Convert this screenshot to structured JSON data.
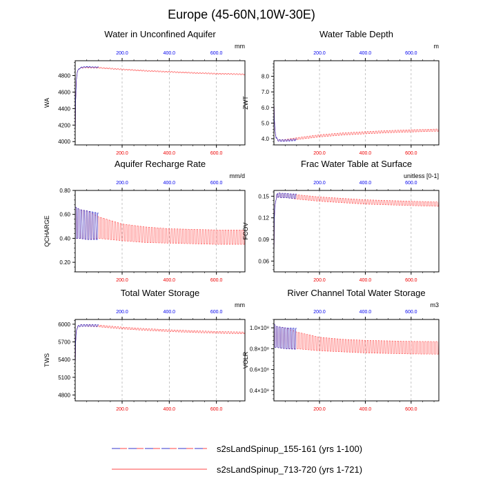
{
  "figure_title": "Europe (45-60N,10W-30E)",
  "colors": {
    "series_a": "#3333cc",
    "series_b": "#ff4444",
    "top_tick": "#0000ee",
    "bottom_tick": "#ee0000",
    "axis": "#000000",
    "grid": "#aaaaaa"
  },
  "legend": [
    {
      "label": "s2sLandSpinup_155-161 (yrs 1-100)",
      "style": "dashed"
    },
    {
      "label": "s2sLandSpinup_713-720 (yrs 1-721)",
      "style": "solid"
    }
  ],
  "chart_data": [
    {
      "type": "line",
      "title": "Water in Unconfined Aquifer",
      "ylabel": "WA",
      "units": "mm",
      "xlim": [
        1,
        721
      ],
      "ylim": [
        3960,
        4980
      ],
      "yticks": [
        4000,
        4200,
        4400,
        4600,
        4800
      ],
      "ytick_labels": [
        "4000",
        "4200",
        "4400",
        "4600",
        "4800"
      ],
      "xticks": [
        200,
        400,
        600
      ],
      "xtick_labels": [
        "200.0",
        "400.0",
        "600.0"
      ],
      "series": [
        {
          "name": "s2sLandSpinup_155-161 (yrs 1-100)",
          "x": [
            1,
            3,
            6,
            10,
            20,
            30,
            50,
            70,
            100
          ],
          "y": [
            3980,
            4500,
            4750,
            4850,
            4890,
            4900,
            4905,
            4902,
            4900
          ],
          "amp": [
            0,
            0,
            0,
            5,
            5,
            5,
            5,
            5,
            5
          ]
        },
        {
          "name": "s2sLandSpinup_713-720 (yrs 1-721)",
          "x": [
            1,
            3,
            6,
            10,
            20,
            40,
            100,
            200,
            300,
            400,
            500,
            600,
            721
          ],
          "y": [
            3980,
            4500,
            4750,
            4850,
            4890,
            4900,
            4895,
            4875,
            4858,
            4845,
            4833,
            4823,
            4815
          ],
          "amp": [
            0,
            0,
            0,
            5,
            5,
            5,
            5,
            5,
            5,
            5,
            5,
            5,
            5
          ]
        }
      ]
    },
    {
      "type": "line",
      "title": "Water Table Depth",
      "ylabel": "ZWT",
      "units": "m",
      "xlim": [
        1,
        721
      ],
      "ylim": [
        3.6,
        9.0
      ],
      "yticks": [
        4.0,
        5.0,
        6.0,
        7.0,
        8.0
      ],
      "ytick_labels": [
        "4.0",
        "5.0",
        "6.0",
        "7.0",
        "8.0"
      ],
      "xticks": [
        200,
        400,
        600
      ],
      "xtick_labels": [
        "200.0",
        "400.0",
        "600.0"
      ],
      "series": [
        {
          "name": "s2sLandSpinup_155-161 (yrs 1-100)",
          "x": [
            1,
            3,
            6,
            10,
            15,
            20,
            30,
            50,
            70,
            100
          ],
          "y": [
            6.6,
            5.2,
            4.5,
            4.1,
            3.95,
            3.9,
            3.88,
            3.88,
            3.9,
            3.93
          ],
          "amp": [
            0,
            0,
            0,
            0.04,
            0.05,
            0.05,
            0.05,
            0.05,
            0.05,
            0.05
          ]
        },
        {
          "name": "s2sLandSpinup_713-720 (yrs 1-721)",
          "x": [
            1,
            3,
            6,
            10,
            15,
            20,
            30,
            50,
            100,
            200,
            300,
            400,
            500,
            600,
            721
          ],
          "y": [
            6.6,
            5.2,
            4.5,
            4.1,
            3.95,
            3.9,
            3.88,
            3.9,
            4.0,
            4.18,
            4.3,
            4.38,
            4.45,
            4.5,
            4.55
          ],
          "amp": [
            0,
            0,
            0,
            0.04,
            0.05,
            0.05,
            0.05,
            0.05,
            0.06,
            0.07,
            0.07,
            0.07,
            0.07,
            0.07,
            0.07
          ]
        }
      ]
    },
    {
      "type": "line",
      "title": "Aquifer Recharge Rate",
      "ylabel": "QCHARGE",
      "units": "mm/d",
      "xlim": [
        1,
        721
      ],
      "ylim": [
        0.12,
        0.8
      ],
      "yticks": [
        0.2,
        0.4,
        0.6,
        0.8
      ],
      "ytick_labels": [
        "0.20",
        "0.40",
        "0.60",
        "0.80"
      ],
      "xticks": [
        200,
        400,
        600
      ],
      "xtick_labels": [
        "200.0",
        "400.0",
        "600.0"
      ],
      "series": [
        {
          "name": "s2sLandSpinup_155-161 (yrs 1-100)",
          "x": [
            1,
            5,
            20,
            50,
            100
          ],
          "y": [
            0.53,
            0.53,
            0.52,
            0.51,
            0.5
          ],
          "amp": [
            0.13,
            0.13,
            0.12,
            0.12,
            0.11
          ]
        },
        {
          "name": "s2sLandSpinup_713-720 (yrs 1-721)",
          "x": [
            1,
            5,
            20,
            50,
            100,
            200,
            300,
            400,
            500,
            600,
            721
          ],
          "y": [
            0.53,
            0.53,
            0.52,
            0.51,
            0.49,
            0.45,
            0.43,
            0.42,
            0.415,
            0.41,
            0.41
          ],
          "amp": [
            0.13,
            0.13,
            0.12,
            0.12,
            0.09,
            0.07,
            0.065,
            0.06,
            0.06,
            0.06,
            0.06
          ]
        }
      ]
    },
    {
      "type": "line",
      "title": "Frac Water Table at Surface",
      "ylabel": "FCOV",
      "units": "unitless [0-1]",
      "xlim": [
        1,
        721
      ],
      "ylim": [
        0.045,
        0.158
      ],
      "yticks": [
        0.06,
        0.09,
        0.12,
        0.15
      ],
      "ytick_labels": [
        "0.06",
        "0.09",
        "0.12",
        "0.15"
      ],
      "xticks": [
        200,
        400,
        600
      ],
      "xtick_labels": [
        "200.0",
        "400.0",
        "600.0"
      ],
      "series": [
        {
          "name": "s2sLandSpinup_155-161 (yrs 1-100)",
          "x": [
            1,
            3,
            6,
            10,
            20,
            30,
            50,
            80,
            100
          ],
          "y": [
            0.055,
            0.12,
            0.14,
            0.148,
            0.152,
            0.151,
            0.151,
            0.15,
            0.15
          ],
          "amp": [
            0,
            0,
            0.002,
            0.003,
            0.003,
            0.003,
            0.003,
            0.003,
            0.003
          ]
        },
        {
          "name": "s2sLandSpinup_713-720 (yrs 1-721)",
          "x": [
            1,
            3,
            6,
            10,
            20,
            30,
            50,
            100,
            200,
            300,
            400,
            500,
            600,
            721
          ],
          "y": [
            0.055,
            0.12,
            0.14,
            0.148,
            0.152,
            0.151,
            0.151,
            0.149,
            0.146,
            0.144,
            0.142,
            0.141,
            0.14,
            0.139
          ],
          "amp": [
            0,
            0,
            0.002,
            0.003,
            0.003,
            0.003,
            0.003,
            0.003,
            0.003,
            0.003,
            0.003,
            0.003,
            0.003,
            0.003
          ]
        }
      ]
    },
    {
      "type": "line",
      "title": "Total Water Storage",
      "ylabel": "TWS",
      "units": "mm",
      "xlim": [
        1,
        721
      ],
      "ylim": [
        4700,
        6080
      ],
      "yticks": [
        4800,
        5100,
        5400,
        5700,
        6000
      ],
      "ytick_labels": [
        "4800",
        "5100",
        "5400",
        "5700",
        "6000"
      ],
      "xticks": [
        200,
        400,
        600
      ],
      "xtick_labels": [
        "200.0",
        "400.0",
        "600.0"
      ],
      "series": [
        {
          "name": "s2sLandSpinup_155-161 (yrs 1-100)",
          "x": [
            1,
            3,
            6,
            10,
            20,
            40,
            70,
            100
          ],
          "y": [
            5200,
            5700,
            5900,
            5950,
            5975,
            5980,
            5978,
            5975
          ],
          "amp": [
            0,
            0,
            10,
            15,
            15,
            15,
            15,
            15
          ]
        },
        {
          "name": "s2sLandSpinup_713-720 (yrs 1-721)",
          "x": [
            1,
            3,
            6,
            10,
            20,
            40,
            100,
            200,
            300,
            400,
            500,
            600,
            721
          ],
          "y": [
            5200,
            5700,
            5900,
            5950,
            5975,
            5980,
            5970,
            5935,
            5910,
            5890,
            5875,
            5862,
            5852
          ],
          "amp": [
            0,
            0,
            10,
            15,
            15,
            15,
            15,
            15,
            15,
            15,
            15,
            15,
            15
          ]
        }
      ]
    },
    {
      "type": "line",
      "title": "River Channel Total Water Storage",
      "ylabel": "VOLR",
      "units": "m3",
      "xlim": [
        1,
        721
      ],
      "ylim": [
        30000000.0,
        108000000.0
      ],
      "yticks": [
        40000000.0,
        60000000.0,
        80000000.0,
        100000000.0
      ],
      "ytick_labels": [
        "0.4×10⁸",
        "0.6×10⁸",
        "0.8×10⁸",
        "1.0×10⁸"
      ],
      "xticks": [
        200,
        400,
        600
      ],
      "xtick_labels": [
        "200.0",
        "400.0",
        "600.0"
      ],
      "series": [
        {
          "name": "s2sLandSpinup_155-161 (yrs 1-100)",
          "x": [
            1,
            5,
            10,
            20,
            50,
            100
          ],
          "y": [
            93000000.0,
            92000000.0,
            91500000.0,
            91000000.0,
            90000000.0,
            89500000.0
          ],
          "amp": [
            11000000.0,
            11000000.0,
            10000000.0,
            10000000.0,
            10000000.0,
            10000000.0
          ]
        },
        {
          "name": "s2sLandSpinup_713-720 (yrs 1-721)",
          "x": [
            1,
            5,
            10,
            20,
            50,
            100,
            200,
            300,
            400,
            500,
            600,
            721
          ],
          "y": [
            93000000.0,
            92000000.0,
            91500000.0,
            91000000.0,
            90000000.0,
            88000000.0,
            84500000.0,
            83000000.0,
            82000000.0,
            81500000.0,
            81000000.0,
            80800000.0
          ],
          "amp": [
            11000000.0,
            11000000.0,
            10000000.0,
            10000000.0,
            10000000.0,
            8000000.0,
            6500000.0,
            6000000.0,
            6000000.0,
            6000000.0,
            6000000.0,
            6000000.0
          ]
        }
      ]
    }
  ]
}
